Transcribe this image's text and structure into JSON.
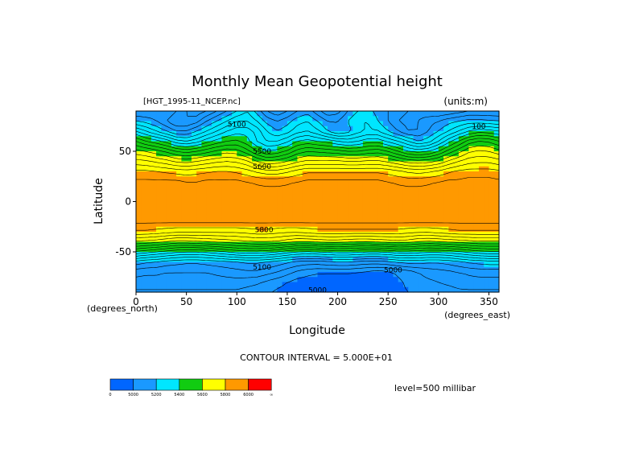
{
  "chart_data": {
    "type": "heatmap",
    "title": "Monthly Mean Geopotential height",
    "file_label": "[HGT_1995-11_NCEP.nc]",
    "units_label": "(units:m)",
    "xlabel": "Longitude",
    "ylabel": "Latitude",
    "x_unit_label": "(degrees_east)",
    "y_unit_label": "(degrees_north)",
    "xlim": [
      0,
      360
    ],
    "ylim": [
      -90,
      90
    ],
    "x_ticks": [
      0,
      50,
      100,
      150,
      200,
      250,
      300,
      350
    ],
    "x_tick_labels": [
      "0",
      "50",
      "100",
      "150",
      "200",
      "250",
      "300",
      "350"
    ],
    "y_ticks": [
      50,
      0,
      -50
    ],
    "y_tick_labels": [
      "50",
      "0",
      "-50"
    ],
    "contour_interval_label": "CONTOUR INTERVAL = 5.000E+01",
    "level_label": "level=500 millibar",
    "contour_labels": [
      {
        "lon": 100,
        "lat": 77,
        "text": "5100"
      },
      {
        "lon": 125,
        "lat": 50,
        "text": "5500"
      },
      {
        "lon": 125,
        "lat": 35,
        "text": "5600"
      },
      {
        "lon": 127,
        "lat": -28,
        "text": "5800"
      },
      {
        "lon": 125,
        "lat": -65,
        "text": "5100"
      },
      {
        "lon": 255,
        "lat": -68,
        "text": "5000"
      },
      {
        "lon": 180,
        "lat": -88,
        "text": "5000"
      },
      {
        "lon": 340,
        "lat": 75,
        "text": "100"
      }
    ],
    "colorbar": {
      "tick_labels": [
        "0",
        "5000",
        "5200",
        "5400",
        "5600",
        "5800",
        "6000",
        "∞"
      ],
      "colors": [
        "#0066ff",
        "#1a99ff",
        "#00e6ff",
        "#11cc11",
        "#ffff00",
        "#ff9900",
        "#ff0000"
      ]
    },
    "height_bands": [
      {
        "lat": 90,
        "values": [
          5100,
          5100,
          5120,
          5150,
          5100,
          5050,
          5020,
          5050,
          5100,
          5150,
          5200,
          5250,
          5180,
          5100,
          5060,
          5100,
          5150,
          5180,
          5120,
          5060,
          5080,
          5150,
          5200,
          5220,
          5180,
          5150,
          5120,
          5100,
          5080,
          5060,
          5050,
          5060,
          5080,
          5100,
          5100,
          5100,
          5100
        ]
      },
      {
        "lat": 80,
        "values": [
          5200,
          5180,
          5150,
          5100,
          5050,
          5050,
          5080,
          5150,
          5200,
          5250,
          5300,
          5300,
          5250,
          5180,
          5150,
          5180,
          5230,
          5250,
          5200,
          5150,
          5150,
          5200,
          5250,
          5250,
          5200,
          5150,
          5100,
          5080,
          5100,
          5130,
          5150,
          5180,
          5200,
          5220,
          5220,
          5210,
          5200
        ]
      },
      {
        "lat": 70,
        "values": [
          5350,
          5300,
          5250,
          5200,
          5150,
          5150,
          5200,
          5250,
          5300,
          5350,
          5380,
          5380,
          5330,
          5250,
          5200,
          5230,
          5280,
          5300,
          5260,
          5200,
          5150,
          5180,
          5230,
          5260,
          5250,
          5200,
          5150,
          5100,
          5100,
          5150,
          5200,
          5250,
          5300,
          5350,
          5380,
          5370,
          5350
        ]
      },
      {
        "lat": 60,
        "values": [
          5500,
          5450,
          5420,
          5380,
          5320,
          5300,
          5330,
          5380,
          5420,
          5450,
          5460,
          5420,
          5350,
          5300,
          5300,
          5340,
          5400,
          5420,
          5400,
          5380,
          5350,
          5330,
          5350,
          5380,
          5380,
          5340,
          5300,
          5250,
          5200,
          5230,
          5300,
          5380,
          5450,
          5520,
          5550,
          5540,
          5500
        ]
      },
      {
        "lat": 50,
        "values": [
          5620,
          5600,
          5570,
          5540,
          5500,
          5480,
          5500,
          5530,
          5560,
          5580,
          5570,
          5520,
          5450,
          5400,
          5420,
          5460,
          5520,
          5550,
          5540,
          5530,
          5520,
          5500,
          5500,
          5520,
          5530,
          5500,
          5450,
          5400,
          5380,
          5400,
          5450,
          5520,
          5580,
          5640,
          5660,
          5650,
          5620
        ]
      },
      {
        "lat": 40,
        "values": [
          5720,
          5710,
          5690,
          5670,
          5640,
          5630,
          5650,
          5670,
          5690,
          5700,
          5690,
          5660,
          5600,
          5560,
          5570,
          5600,
          5640,
          5660,
          5660,
          5660,
          5660,
          5650,
          5650,
          5660,
          5660,
          5640,
          5610,
          5580,
          5570,
          5580,
          5610,
          5660,
          5700,
          5730,
          5740,
          5740,
          5720
        ]
      },
      {
        "lat": 30,
        "values": [
          5810,
          5810,
          5800,
          5790,
          5780,
          5770,
          5780,
          5790,
          5800,
          5800,
          5790,
          5770,
          5740,
          5720,
          5720,
          5740,
          5770,
          5790,
          5790,
          5790,
          5790,
          5790,
          5790,
          5790,
          5790,
          5780,
          5760,
          5740,
          5730,
          5740,
          5760,
          5790,
          5810,
          5820,
          5820,
          5820,
          5810
        ]
      },
      {
        "lat": 20,
        "values": [
          5860,
          5860,
          5860,
          5860,
          5860,
          5850,
          5850,
          5860,
          5860,
          5860,
          5860,
          5850,
          5840,
          5830,
          5830,
          5840,
          5850,
          5860,
          5860,
          5860,
          5860,
          5860,
          5860,
          5860,
          5860,
          5850,
          5840,
          5830,
          5830,
          5840,
          5850,
          5860,
          5860,
          5870,
          5870,
          5870,
          5860
        ]
      },
      {
        "lat": 10,
        "values": [
          5880,
          5880,
          5880,
          5880,
          5880,
          5880,
          5880,
          5880,
          5880,
          5880,
          5880,
          5880,
          5870,
          5870,
          5870,
          5870,
          5880,
          5880,
          5880,
          5880,
          5880,
          5880,
          5880,
          5880,
          5880,
          5880,
          5870,
          5870,
          5870,
          5870,
          5880,
          5880,
          5880,
          5880,
          5880,
          5880,
          5880
        ]
      },
      {
        "lat": 0,
        "values": [
          5880,
          5880,
          5880,
          5880,
          5880,
          5880,
          5880,
          5880,
          5880,
          5880,
          5880,
          5880,
          5880,
          5880,
          5880,
          5880,
          5880,
          5880,
          5880,
          5880,
          5880,
          5880,
          5880,
          5880,
          5880,
          5880,
          5880,
          5880,
          5880,
          5880,
          5880,
          5880,
          5880,
          5880,
          5880,
          5880,
          5880
        ]
      },
      {
        "lat": -10,
        "values": [
          5880,
          5880,
          5880,
          5880,
          5880,
          5880,
          5880,
          5880,
          5880,
          5880,
          5880,
          5880,
          5880,
          5880,
          5880,
          5880,
          5880,
          5880,
          5880,
          5880,
          5880,
          5880,
          5880,
          5880,
          5880,
          5880,
          5880,
          5880,
          5880,
          5880,
          5880,
          5880,
          5880,
          5880,
          5880,
          5880,
          5880
        ]
      },
      {
        "lat": -20,
        "values": [
          5860,
          5860,
          5860,
          5860,
          5860,
          5860,
          5860,
          5860,
          5860,
          5860,
          5860,
          5860,
          5860,
          5860,
          5860,
          5860,
          5860,
          5860,
          5860,
          5860,
          5860,
          5860,
          5860,
          5860,
          5860,
          5860,
          5860,
          5860,
          5860,
          5860,
          5860,
          5860,
          5860,
          5860,
          5860,
          5860,
          5860
        ]
      },
      {
        "lat": -30,
        "values": [
          5790,
          5790,
          5780,
          5770,
          5760,
          5760,
          5760,
          5760,
          5760,
          5760,
          5760,
          5770,
          5780,
          5780,
          5770,
          5760,
          5760,
          5770,
          5780,
          5780,
          5780,
          5780,
          5780,
          5780,
          5780,
          5780,
          5780,
          5770,
          5760,
          5760,
          5770,
          5780,
          5790,
          5790,
          5790,
          5790,
          5790
        ]
      },
      {
        "lat": -40,
        "values": [
          5640,
          5630,
          5620,
          5600,
          5580,
          5580,
          5590,
          5600,
          5610,
          5620,
          5630,
          5640,
          5650,
          5650,
          5640,
          5620,
          5600,
          5600,
          5610,
          5620,
          5620,
          5610,
          5600,
          5600,
          5610,
          5620,
          5630,
          5620,
          5600,
          5590,
          5600,
          5610,
          5620,
          5630,
          5640,
          5640,
          5640
        ]
      },
      {
        "lat": -50,
        "values": [
          5440,
          5420,
          5400,
          5380,
          5360,
          5350,
          5350,
          5360,
          5380,
          5400,
          5420,
          5430,
          5430,
          5420,
          5400,
          5370,
          5350,
          5340,
          5350,
          5360,
          5370,
          5370,
          5360,
          5350,
          5350,
          5360,
          5380,
          5380,
          5370,
          5360,
          5360,
          5370,
          5390,
          5410,
          5430,
          5440,
          5440
        ]
      },
      {
        "lat": -60,
        "values": [
          5230,
          5210,
          5200,
          5180,
          5170,
          5160,
          5160,
          5170,
          5180,
          5190,
          5200,
          5210,
          5210,
          5200,
          5180,
          5160,
          5140,
          5130,
          5130,
          5140,
          5150,
          5150,
          5140,
          5130,
          5130,
          5140,
          5160,
          5170,
          5170,
          5160,
          5160,
          5170,
          5190,
          5210,
          5220,
          5230,
          5230
        ]
      },
      {
        "lat": -70,
        "values": [
          5120,
          5110,
          5110,
          5100,
          5100,
          5100,
          5100,
          5100,
          5110,
          5120,
          5130,
          5140,
          5140,
          5120,
          5100,
          5070,
          5040,
          5020,
          5010,
          5010,
          5010,
          5010,
          5000,
          4990,
          4980,
          4990,
          5010,
          5030,
          5050,
          5070,
          5080,
          5090,
          5100,
          5110,
          5120,
          5120,
          5120
        ]
      },
      {
        "lat": -80,
        "values": [
          5080,
          5080,
          5080,
          5080,
          5080,
          5080,
          5080,
          5080,
          5080,
          5080,
          5080,
          5070,
          5060,
          5040,
          5020,
          5000,
          4980,
          4970,
          4960,
          4950,
          4950,
          4950,
          4950,
          4950,
          4960,
          4970,
          4990,
          5010,
          5030,
          5040,
          5050,
          5060,
          5070,
          5080,
          5080,
          5080,
          5080
        ]
      },
      {
        "lat": -90,
        "values": [
          5040,
          5040,
          5040,
          5040,
          5040,
          5040,
          5040,
          5040,
          5040,
          5040,
          5040,
          5030,
          5020,
          5010,
          4990,
          4980,
          4970,
          4960,
          4950,
          4950,
          4950,
          4950,
          4950,
          4960,
          4970,
          4980,
          4990,
          5000,
          5010,
          5020,
          5030,
          5030,
          5040,
          5040,
          5040,
          5040,
          5040
        ]
      }
    ]
  }
}
